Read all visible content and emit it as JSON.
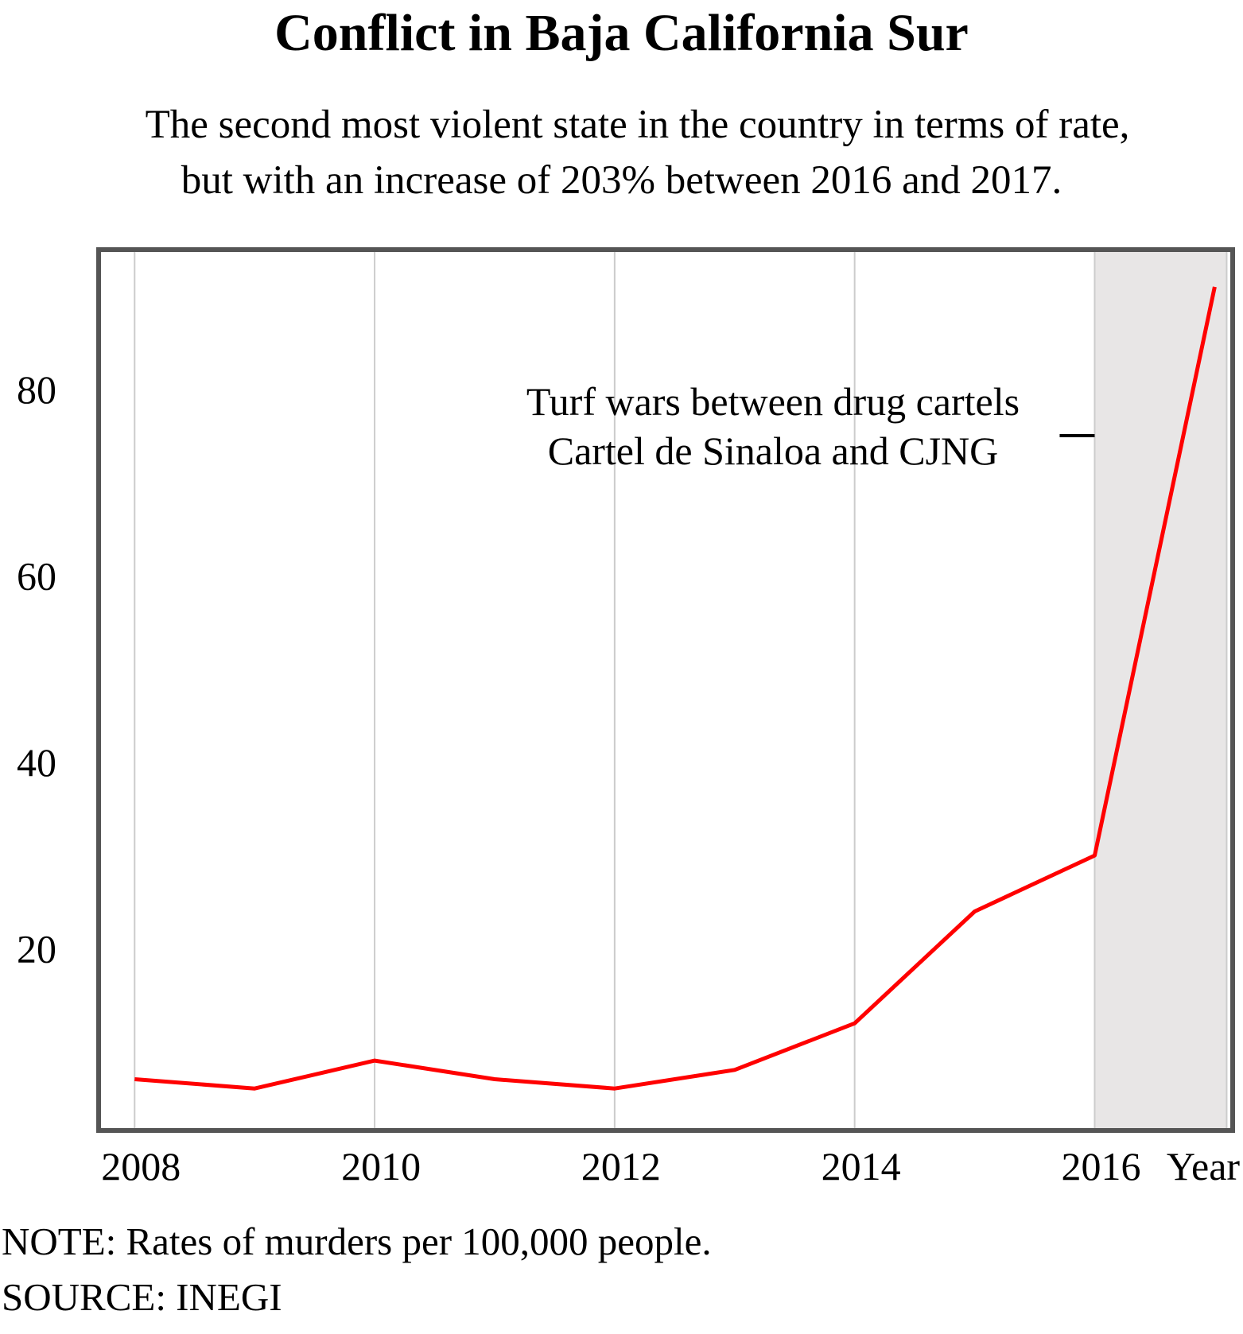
{
  "title": "Conflict in Baja California Sur",
  "subtitle_lines": [
    "The second most violent state in the country in terms of rate,",
    "but with an increase of 203% between 2016 and 2017."
  ],
  "note": "NOTE: Rates of murders per 100,000 people.",
  "source": "SOURCE: INEGI",
  "colors": {
    "line": "#ff0000",
    "frame": "#555555",
    "grid": "#cccccc",
    "shade": "#e8e6e6"
  },
  "chart_data": {
    "type": "line",
    "title": "Conflict in Baja California Sur",
    "xlabel": "Year",
    "ylabel": "",
    "x": [
      2008,
      2009,
      2010,
      2011,
      2012,
      2013,
      2014,
      2015,
      2016,
      2017
    ],
    "series": [
      {
        "values": [
          6,
          5,
          8,
          6,
          5,
          7,
          12,
          24,
          30,
          91
        ]
      }
    ],
    "xticks": [
      "2008",
      "2010",
      "2012",
      "2014",
      "2016"
    ],
    "yticks": [
      "20",
      "40",
      "60",
      "80"
    ],
    "xlim": [
      2007.7,
      2017.15
    ],
    "ylim": [
      0.5,
      95
    ],
    "grid": "vertical",
    "shaded_region": [
      2016,
      2017.1
    ],
    "annotation": {
      "lines": [
        "Turf wars between drug cartels",
        "Cartel de Sinaloa and CJNG"
      ],
      "x": 2016
    }
  }
}
